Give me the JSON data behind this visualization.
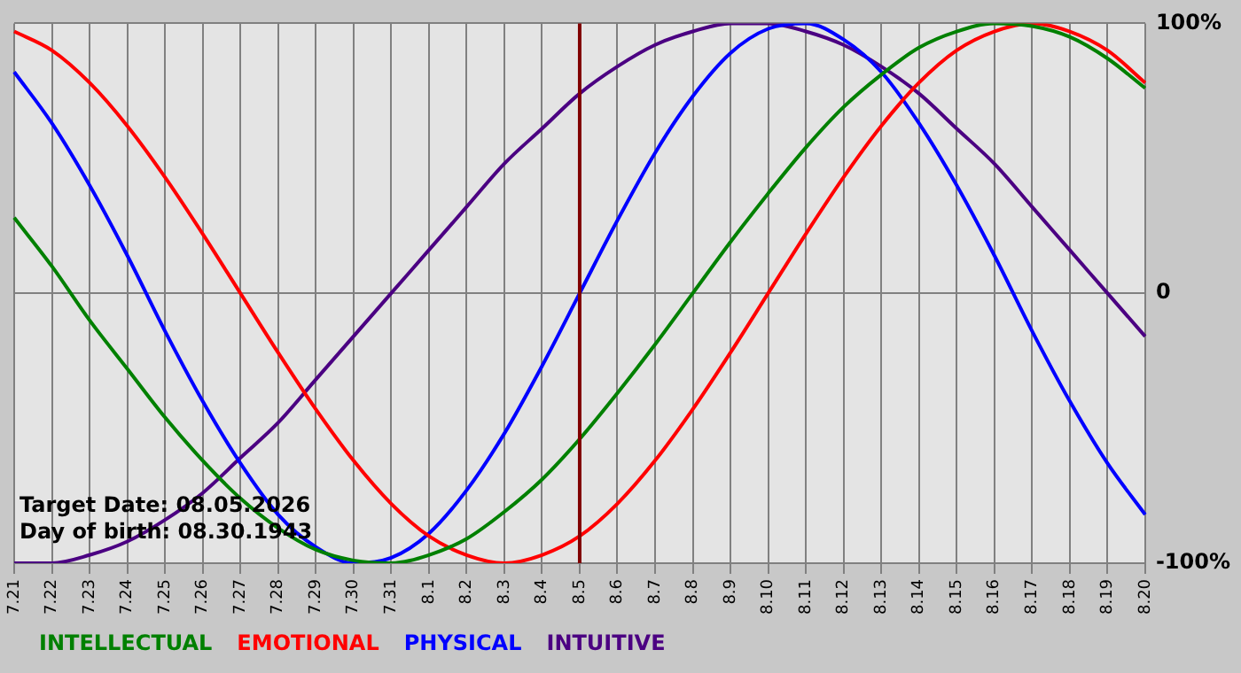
{
  "chart_data": {
    "type": "line",
    "categories": [
      "7.21",
      "7.22",
      "7.23",
      "7.24",
      "7.25",
      "7.26",
      "7.27",
      "7.28",
      "7.29",
      "7.30",
      "7.31",
      "8.1",
      "8.2",
      "8.3",
      "8.4",
      "8.5",
      "8.6",
      "8.7",
      "8.8",
      "8.9",
      "8.10",
      "8.11",
      "8.12",
      "8.13",
      "8.14",
      "8.15",
      "8.16",
      "8.17",
      "8.18",
      "8.19",
      "8.20"
    ],
    "series": [
      {
        "name": "INTELLECTUAL",
        "color": "#008000",
        "values": [
          28,
          10,
          -10,
          -28,
          -46,
          -62,
          -76,
          -87,
          -95,
          -99,
          -100,
          -97,
          -91,
          -81,
          -69,
          -54,
          -37,
          -19,
          0,
          19,
          37,
          54,
          69,
          81,
          91,
          97,
          100,
          99,
          95,
          87,
          76
        ]
      },
      {
        "name": "EMOTIONAL",
        "color": "#ff0000",
        "values": [
          97,
          90,
          78,
          62,
          43,
          22,
          0,
          -22,
          -43,
          -62,
          -78,
          -90,
          -97,
          -100,
          -97,
          -90,
          -78,
          -62,
          -43,
          -22,
          0,
          22,
          43,
          62,
          78,
          90,
          97,
          100,
          97,
          90,
          78
        ]
      },
      {
        "name": "PHYSICAL",
        "color": "#0000ff",
        "values": [
          82,
          63,
          40,
          14,
          -14,
          -40,
          -63,
          -82,
          -94,
          -100,
          -98,
          -89,
          -73,
          -52,
          -27,
          0,
          27,
          52,
          73,
          89,
          98,
          100,
          94,
          82,
          63,
          40,
          14,
          -14,
          -40,
          -63,
          -82
        ]
      },
      {
        "name": "INTUITIVE",
        "color": "#4b0082",
        "values": [
          -100,
          -100,
          -97,
          -92,
          -84,
          -74,
          -61,
          -48,
          -32,
          -16,
          0,
          16,
          32,
          48,
          61,
          74,
          84,
          92,
          97,
          100,
          100,
          97,
          92,
          84,
          74,
          61,
          48,
          32,
          16,
          0,
          -16
        ]
      }
    ],
    "ylim": [
      -100,
      100
    ],
    "yticks": [
      {
        "value": -100,
        "label": "-100%"
      },
      0,
      {
        "value": 100,
        "label": "100%"
      }
    ],
    "grid": true,
    "legend": "bottom left",
    "marker": "none",
    "line_style": "solid",
    "ref_lines": [
      {
        "axis": "x",
        "value": "8.5",
        "color": "#800000"
      }
    ],
    "annotations": [
      "Target Date: 08.05.2026",
      "Day of birth: 08.30.1943"
    ]
  }
}
